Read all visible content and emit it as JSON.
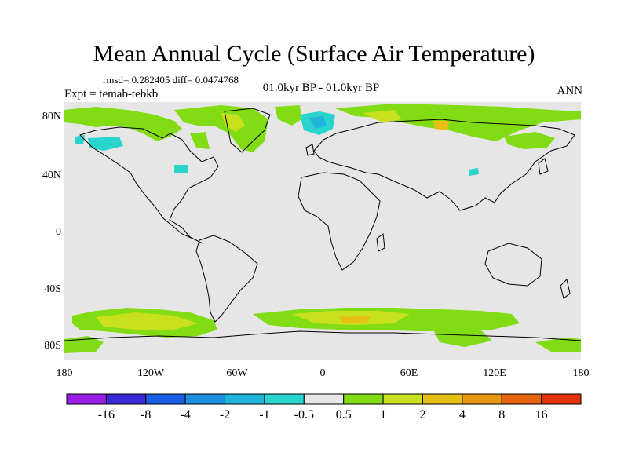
{
  "title": "Mean Annual Cycle (Surface Air Temperature)",
  "stats": "rmsd= 0.282405 diff= 0.0474768",
  "expt": "Expt = temab-tebkb",
  "period": "01.0kyr BP - 01.0kyr BP",
  "season": "ANN",
  "lat_labels": [
    "80N",
    "40N",
    "0",
    "40S",
    "80S"
  ],
  "lon_labels": [
    "180",
    "120W",
    "60W",
    "0",
    "60E",
    "120E",
    "180"
  ],
  "colorbar": {
    "labels": [
      "-16",
      "-8",
      "-4",
      "-2",
      "-1",
      "-0.5",
      "0.5",
      "1",
      "2",
      "4",
      "8",
      "16"
    ],
    "colors": [
      "#9a1ee8",
      "#3a28d8",
      "#1a5ee8",
      "#1e8ee0",
      "#20b4dc",
      "#28d4cc",
      "#e6e6e6",
      "#82dc14",
      "#c8e01e",
      "#e6be14",
      "#e69610",
      "#e6640c",
      "#e6320a"
    ]
  },
  "colors": {
    "ocean_land_bg": "#e6e6e6",
    "positive_light": "#82dc14",
    "positive_mid": "#c8e01e",
    "positive_strong": "#e6be14",
    "negative_light": "#28d4cc",
    "negative_mid": "#20b4dc"
  }
}
